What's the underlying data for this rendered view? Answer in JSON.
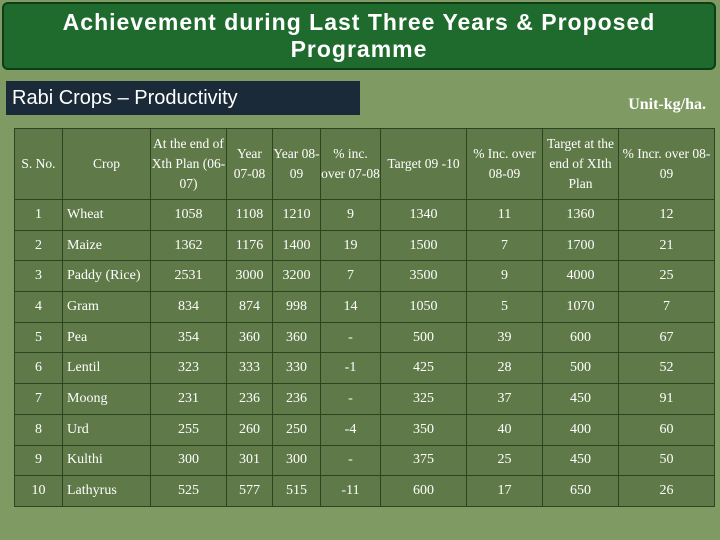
{
  "title": "Achievement during Last Three Years & Proposed Programme",
  "subtitle": "Rabi Crops – Productivity",
  "unit": "Unit-kg/ha.",
  "table": {
    "headers": [
      "S. No.",
      "Crop",
      "At the end of Xth Plan (06-07)",
      "Year 07-08",
      "Year 08-09",
      "% inc. over 07-08",
      "Target 09 -10",
      "% Inc. over 08-09",
      "Target at the end of XIth Plan",
      "% Incr. over 08-09"
    ],
    "rows": [
      [
        "1",
        "Wheat",
        "1058",
        "1108",
        "1210",
        "9",
        "1340",
        "11",
        "1360",
        "12"
      ],
      [
        "2",
        "Maize",
        "1362",
        "1176",
        "1400",
        "19",
        "1500",
        "7",
        "1700",
        "21"
      ],
      [
        "3",
        "Paddy (Rice)",
        "2531",
        "3000",
        "3200",
        "7",
        "3500",
        "9",
        "4000",
        "25"
      ],
      [
        "4",
        "Gram",
        "834",
        "874",
        "998",
        "14",
        "1050",
        "5",
        "1070",
        "7"
      ],
      [
        "5",
        "Pea",
        "354",
        "360",
        "360",
        "-",
        "500",
        "39",
        "600",
        "67"
      ],
      [
        "6",
        "Lentil",
        "323",
        "333",
        "330",
        "-1",
        "425",
        "28",
        "500",
        "52"
      ],
      [
        "7",
        "Moong",
        "231",
        "236",
        "236",
        "-",
        "325",
        "37",
        "450",
        "91"
      ],
      [
        "8",
        "Urd",
        "255",
        "260",
        "250",
        "-4",
        "350",
        "40",
        "400",
        "60"
      ],
      [
        "9",
        "Kulthi",
        "300",
        "301",
        "300",
        "-",
        "375",
        "25",
        "450",
        "50"
      ],
      [
        "10",
        "Lathyrus",
        "525",
        "577",
        "515",
        "-11",
        "600",
        "17",
        "650",
        "26"
      ]
    ]
  }
}
